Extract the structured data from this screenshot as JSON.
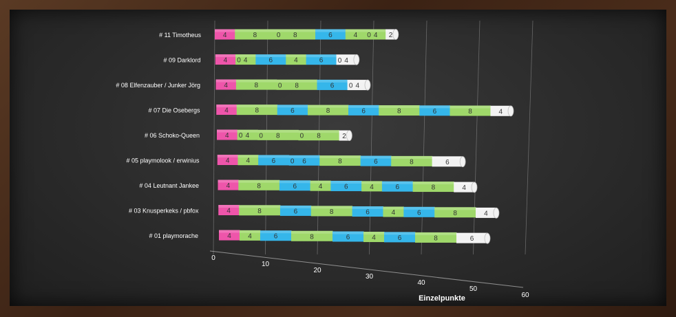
{
  "chart_data": {
    "type": "bar",
    "stacked": true,
    "orientation": "horizontal",
    "xlabel": "Einzelpunkte",
    "xlim": [
      0,
      60
    ],
    "x_ticks": [
      "0",
      "10",
      "20",
      "30",
      "40",
      "50",
      "60"
    ],
    "grid": true,
    "legend": "none",
    "segment_colors": {
      "pink": "#ee55aa",
      "green": "#9fd86a",
      "blue": "#35b6ea",
      "white": "#f2f2f2"
    },
    "categories": [
      "# 11 Timotheus",
      "# 09 Darklord",
      "# 08 Elfenzauber / Junker Jörg",
      "# 07 Die Osebergs",
      "# 06 Schoko-Queen",
      "# 05 playmolook / erwinius",
      "# 04 Leutnant Jankee",
      "# 03 Knusperkeks / pbfox",
      "# 01 playmorache"
    ],
    "rows": [
      {
        "segments": [
          {
            "v": 4,
            "c": "pink"
          },
          {
            "v": 8,
            "c": "green"
          },
          {
            "v": 0,
            "c": "green"
          },
          {
            "v": 8,
            "c": "green"
          },
          {
            "v": 6,
            "c": "blue"
          },
          {
            "v": 4,
            "c": "green"
          },
          {
            "v": 0,
            "c": "green"
          },
          {
            "v": 4,
            "c": "green"
          },
          {
            "v": 2,
            "c": "white"
          }
        ]
      },
      {
        "segments": [
          {
            "v": 4,
            "c": "pink"
          },
          {
            "v": 0,
            "c": "pink"
          },
          {
            "v": 4,
            "c": "green"
          },
          {
            "v": 6,
            "c": "blue"
          },
          {
            "v": 4,
            "c": "green"
          },
          {
            "v": 6,
            "c": "blue"
          },
          {
            "v": 0,
            "c": "blue"
          },
          {
            "v": 4,
            "c": "white"
          }
        ]
      },
      {
        "segments": [
          {
            "v": 4,
            "c": "pink"
          },
          {
            "v": 8,
            "c": "green"
          },
          {
            "v": 0,
            "c": "green"
          },
          {
            "v": 8,
            "c": "green"
          },
          {
            "v": 6,
            "c": "blue"
          },
          {
            "v": 0,
            "c": "blue"
          },
          {
            "v": 4,
            "c": "white"
          }
        ]
      },
      {
        "segments": [
          {
            "v": 4,
            "c": "pink"
          },
          {
            "v": 8,
            "c": "green"
          },
          {
            "v": 6,
            "c": "blue"
          },
          {
            "v": 8,
            "c": "green"
          },
          {
            "v": 6,
            "c": "blue"
          },
          {
            "v": 8,
            "c": "green"
          },
          {
            "v": 6,
            "c": "blue"
          },
          {
            "v": 8,
            "c": "green"
          },
          {
            "v": 4,
            "c": "white"
          }
        ]
      },
      {
        "segments": [
          {
            "v": 4,
            "c": "pink"
          },
          {
            "v": 0,
            "c": "pink"
          },
          {
            "v": 4,
            "c": "green"
          },
          {
            "v": 0,
            "c": "green"
          },
          {
            "v": 8,
            "c": "green"
          },
          {
            "v": 0,
            "c": "green"
          },
          {
            "v": 8,
            "c": "green"
          },
          {
            "v": 2,
            "c": "white"
          }
        ]
      },
      {
        "segments": [
          {
            "v": 4,
            "c": "pink"
          },
          {
            "v": 4,
            "c": "green"
          },
          {
            "v": 6,
            "c": "blue"
          },
          {
            "v": 0,
            "c": "blue"
          },
          {
            "v": 6,
            "c": "blue"
          },
          {
            "v": 8,
            "c": "green"
          },
          {
            "v": 6,
            "c": "blue"
          },
          {
            "v": 8,
            "c": "green"
          },
          {
            "v": 6,
            "c": "white"
          }
        ]
      },
      {
        "segments": [
          {
            "v": 4,
            "c": "pink"
          },
          {
            "v": 8,
            "c": "green"
          },
          {
            "v": 6,
            "c": "blue"
          },
          {
            "v": 4,
            "c": "green"
          },
          {
            "v": 6,
            "c": "blue"
          },
          {
            "v": 4,
            "c": "green"
          },
          {
            "v": 6,
            "c": "blue"
          },
          {
            "v": 8,
            "c": "green"
          },
          {
            "v": 4,
            "c": "white"
          }
        ]
      },
      {
        "segments": [
          {
            "v": 4,
            "c": "pink"
          },
          {
            "v": 8,
            "c": "green"
          },
          {
            "v": 6,
            "c": "blue"
          },
          {
            "v": 8,
            "c": "green"
          },
          {
            "v": 6,
            "c": "blue"
          },
          {
            "v": 4,
            "c": "green"
          },
          {
            "v": 6,
            "c": "blue"
          },
          {
            "v": 8,
            "c": "green"
          },
          {
            "v": 4,
            "c": "white"
          }
        ]
      },
      {
        "segments": [
          {
            "v": 4,
            "c": "pink"
          },
          {
            "v": 4,
            "c": "green"
          },
          {
            "v": 6,
            "c": "blue"
          },
          {
            "v": 8,
            "c": "green"
          },
          {
            "v": 6,
            "c": "blue"
          },
          {
            "v": 4,
            "c": "green"
          },
          {
            "v": 6,
            "c": "blue"
          },
          {
            "v": 8,
            "c": "green"
          },
          {
            "v": 6,
            "c": "white"
          }
        ]
      }
    ]
  }
}
